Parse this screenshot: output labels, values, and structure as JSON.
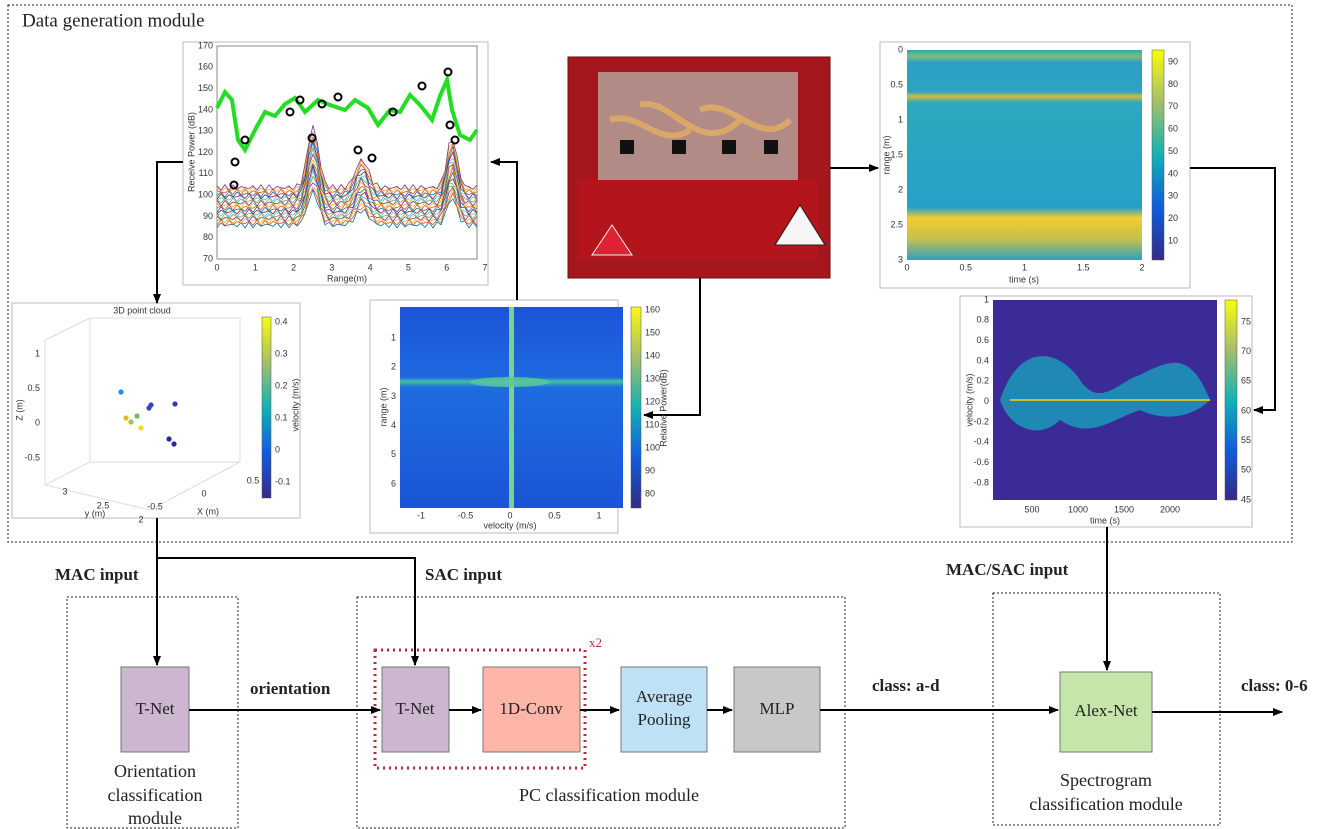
{
  "title": "Data generation module",
  "figures": {
    "range_profile": {
      "ylabel": "Receive Power (dB)",
      "xlabel": "Range(m)",
      "yticks": [
        170,
        160,
        150,
        140,
        130,
        120,
        110,
        100,
        90,
        80,
        70
      ],
      "xticks": [
        0,
        1,
        2,
        3,
        4,
        5,
        6,
        7
      ]
    },
    "range_time": {
      "ylabel": "range (m)",
      "xlabel": "time (s)",
      "yticks": [
        0,
        0.5,
        1,
        1.5,
        2,
        2.5,
        3
      ],
      "xticks": [
        0,
        0.5,
        1,
        1.5,
        2
      ],
      "colorbar_ticks": [
        90,
        80,
        70,
        60,
        50,
        40,
        30,
        20,
        10
      ]
    },
    "point_cloud": {
      "title": "3D point cloud",
      "zlabel": "Z (m)",
      "ylabel": "y (m)",
      "xlabel": "X (m)",
      "zticks": [
        1,
        0.5,
        0,
        -0.5
      ],
      "yticks": [
        3,
        2.5,
        2
      ],
      "xticks": [
        0.5,
        0,
        -0.5
      ],
      "colorbar_label": "velocity (m/s)",
      "colorbar_ticks": [
        0.4,
        0.3,
        0.2,
        0.1,
        0,
        -0.1
      ]
    },
    "range_doppler": {
      "ylabel": "range (m)",
      "xlabel": "velocity (m/s)",
      "yticks": [
        1,
        2,
        3,
        4,
        5,
        6
      ],
      "xticks": [
        -1,
        -0.5,
        0,
        0.5,
        1
      ],
      "colorbar_label": "Relative Power(dB)",
      "colorbar_ticks": [
        160,
        150,
        140,
        130,
        120,
        110,
        100,
        90,
        80
      ]
    },
    "doppler_time": {
      "ylabel": "velocity (m/s)",
      "xlabel": "time (s)",
      "yticks": [
        1,
        0.8,
        0.6,
        0.4,
        0.2,
        0,
        -0.2,
        -0.4,
        -0.6,
        -0.8
      ],
      "xticks": [
        500,
        1000,
        1500,
        2000
      ],
      "colorbar_ticks": [
        75,
        70,
        65,
        60,
        55,
        50,
        45
      ]
    }
  },
  "labels": {
    "mac_input": "MAC input",
    "sac_input": "SAC input",
    "mac_sac_input": "MAC/SAC input",
    "orientation": "orientation",
    "class_ad": "class: a-d",
    "class_06": "class: 0-6",
    "repeat": "x2"
  },
  "blocks": {
    "tnet_orientation": "T-Net",
    "tnet_pc": "T-Net",
    "conv": "1D-Conv",
    "pool": [
      "Average",
      "Pooling"
    ],
    "mlp": "MLP",
    "alexnet": "Alex-Net"
  },
  "modules": {
    "orientation": [
      "Orientation",
      "classification",
      "module"
    ],
    "pc": "PC classification module",
    "spectrogram": [
      "Spectrogram",
      "classification module"
    ]
  }
}
